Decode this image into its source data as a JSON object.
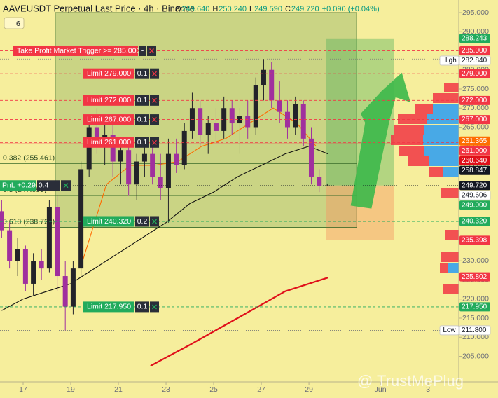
{
  "header": {
    "title": "AAVEUSDT Perpetual Last Price · 4h · Binance",
    "ohlc": [
      {
        "key": "O",
        "value": 249.64,
        "label": "249.640"
      },
      {
        "key": "H",
        "value": 250.24,
        "label": "250.240"
      },
      {
        "key": "L",
        "value": 249.59,
        "label": "249.590"
      },
      {
        "key": "C",
        "value": 249.72,
        "label": "249.720"
      }
    ],
    "change": "+0.090 (+0.04%)",
    "indicator_count": 6
  },
  "watermark": "@ TrustMePlug",
  "chart_data": {
    "type": "candlestick",
    "x": [
      16.1,
      16.43,
      16.77,
      17.1,
      17.43,
      17.77,
      18.1,
      18.43,
      18.77,
      19.1,
      19.43,
      19.77,
      20.1,
      20.43,
      20.77,
      21.1,
      21.43,
      21.77,
      22.1,
      22.43,
      22.77,
      23.1,
      23.43,
      23.77,
      24.1,
      24.43,
      24.77,
      25.1,
      25.43,
      25.77,
      26.1,
      26.43,
      26.77,
      27.1,
      27.43,
      27.77,
      28.1,
      28.43,
      28.77,
      29.1,
      29.43,
      29.77
    ],
    "open": [
      243,
      238,
      230,
      233,
      224,
      230,
      228,
      244,
      226,
      218,
      228,
      254,
      265,
      261,
      263,
      256,
      259,
      250,
      256,
      258,
      252,
      249,
      258,
      255,
      264,
      270,
      263,
      266,
      264,
      270,
      266,
      268,
      265,
      276,
      280,
      272,
      269,
      265,
      271,
      262,
      252,
      249.64
    ],
    "high": [
      246,
      240,
      236,
      234,
      232,
      233,
      246,
      247,
      230,
      230,
      256,
      268,
      270,
      266,
      266,
      262,
      262,
      258,
      262,
      261,
      258,
      262,
      262,
      266,
      274,
      272,
      268,
      270,
      273,
      272,
      270,
      272,
      278,
      282.84,
      282,
      277,
      272,
      273,
      272,
      265,
      254,
      250.24
    ],
    "low": [
      236,
      228,
      226,
      222,
      221,
      225,
      227,
      222,
      211.8,
      216,
      226,
      252,
      258,
      255,
      252,
      250,
      247,
      246,
      252,
      250,
      246,
      240,
      253,
      254,
      262,
      260,
      258,
      261,
      262,
      263,
      258,
      262,
      263,
      272,
      270,
      266,
      262,
      263,
      260,
      250,
      248,
      249.59
    ],
    "close": [
      238,
      230,
      233,
      224,
      230,
      228,
      244,
      226,
      218,
      228,
      254,
      265,
      261,
      263,
      256,
      259,
      250,
      256,
      258,
      252,
      249,
      258,
      255,
      264,
      270,
      263,
      266,
      264,
      270,
      266,
      268,
      265,
      276,
      280,
      272,
      269,
      265,
      271,
      262,
      252,
      249.64,
      249.72
    ],
    "up_color": "#23232a",
    "down_color": "#a0309e",
    "xlim": [
      16.03,
      35.29
    ],
    "ylim": [
      198.3,
      298.3
    ],
    "xticks": [
      17,
      19,
      21,
      23,
      25,
      27,
      29,
      {
        "value": 32,
        "label": "Jun"
      },
      {
        "value": 34,
        "label": "3"
      }
    ],
    "yticks": [
      {
        "value": 295,
        "label": "295.000"
      },
      {
        "value": 290,
        "label": "290.000"
      },
      {
        "value": 285,
        "label": "285.000"
      },
      {
        "value": 280,
        "label": "280.000"
      },
      {
        "value": 275,
        "label": "275.000"
      },
      {
        "value": 270,
        "label": "270.000"
      },
      {
        "value": 265,
        "label": "265.000"
      },
      {
        "value": 260,
        "label": "260.000"
      },
      {
        "value": 255,
        "label": "255.000"
      },
      {
        "value": 250,
        "label": "250.000"
      },
      {
        "value": 245,
        "label": "245.000"
      },
      {
        "value": 240,
        "label": "240.000"
      },
      {
        "value": 235,
        "label": "235.000"
      },
      {
        "value": 230,
        "label": "230.000"
      },
      {
        "value": 225,
        "label": "225.000"
      },
      {
        "value": 220,
        "label": "220.000"
      },
      {
        "value": 215,
        "label": "215.000"
      },
      {
        "value": 210,
        "label": "210.000"
      },
      {
        "value": 205,
        "label": "205.000"
      }
    ],
    "moving_averages": [
      {
        "color": "#ff6a00",
        "x": [
          19.5,
          20.5,
          21.5,
          22.5,
          23.5,
          24.5,
          25.5,
          26.5,
          27.5,
          28.5,
          29.3
        ],
        "values": [
          230,
          250,
          255,
          255,
          256,
          260,
          262,
          266,
          270,
          266,
          260
        ]
      },
      {
        "color": "#111111",
        "x": [
          16.1,
          17,
          18,
          19,
          20,
          21,
          22,
          23,
          24,
          25,
          26,
          27,
          28,
          29,
          29.8
        ],
        "values": [
          217,
          220,
          222,
          224,
          228,
          232,
          236,
          240,
          245,
          248,
          252,
          255,
          258,
          260,
          258
        ]
      },
      {
        "color": "#e0101a",
        "x": [
          22.35,
          24,
          26,
          28,
          29.8
        ],
        "values": [
          202.5,
          208,
          215,
          222,
          225.6
        ]
      }
    ],
    "range_box": {
      "x": [
        18.35,
        31.0
      ],
      "price": [
        238.728,
        295
      ]
    },
    "position_box": {
      "x": [
        29.72,
        32.56
      ],
      "entry": 249.72,
      "target": 288.243,
      "stop": 235.398
    },
    "orders": [
      {
        "text": "Take Profit Market Trigger >= 285.000",
        "price": 285,
        "qty": "-",
        "color": "#f23645"
      },
      {
        "text": "Limit 279.000",
        "price": 279,
        "qty": 0.1,
        "color": "#f23645"
      },
      {
        "text": "Limit 272.000",
        "price": 272,
        "qty": 0.1,
        "color": "#f23645"
      },
      {
        "text": "Limit 267.000",
        "price": 267,
        "qty": 0.1,
        "color": "#f23645"
      },
      {
        "text": "Limit 261.000",
        "price": 261,
        "qty": 0.1,
        "color": "#f23645"
      },
      {
        "text": "Limit 240.320",
        "price": 240.32,
        "qty": 0.2,
        "color": "#22ab5c"
      },
      {
        "text": "Limit 217.950",
        "price": 217.95,
        "qty": 0.1,
        "color": "#22ab5c"
      }
    ],
    "pnl": {
      "text": "PnL +0.29",
      "qty": 0.4,
      "price": 249.72,
      "color": "#22ab5c"
    },
    "fib_levels": [
      {
        "text": "0.382 (255.461)",
        "price": 255.461
      },
      {
        "text": "0.5 (247.095)",
        "price": 247.095
      },
      {
        "text": "0.618 (238.728)",
        "price": 238.728
      }
    ],
    "level_lines": [
      {
        "price": 260.64,
        "color": "#f23645"
      },
      {
        "price": 282.84,
        "color": "#777777"
      },
      {
        "price": 211.8,
        "color": "#777777"
      }
    ],
    "price_badges": [
      {
        "price": 288.243,
        "label": "288.243",
        "bg": "#22ab5c",
        "fg": "#ffffff"
      },
      {
        "price": 285,
        "label": "285.000",
        "bg": "#f23645",
        "fg": "#ffffff"
      },
      {
        "price": 282.84,
        "label": "282.840",
        "tag": "High",
        "bg": "#ffffff",
        "fg": "#131722"
      },
      {
        "price": 279,
        "label": "279.000",
        "bg": "#f23645",
        "fg": "#ffffff"
      },
      {
        "price": 272,
        "label": "272.000",
        "bg": "#f23645",
        "fg": "#ffffff"
      },
      {
        "price": 267,
        "label": "267.000",
        "bg": "#f23645",
        "fg": "#ffffff"
      },
      {
        "price": 261.365,
        "label": "261.365",
        "bg": "#ff6d00",
        "fg": "#ffffff"
      },
      {
        "price": 261,
        "label": "261.000",
        "bg": "#f23645",
        "fg": "#ffffff"
      },
      {
        "price": 260.64,
        "label": "260.640",
        "bg": "#e0101a",
        "fg": "#ffffff"
      },
      {
        "price": 258.847,
        "label": "258.847",
        "bg": "#131722",
        "fg": "#ffffff"
      },
      {
        "price": 249.72,
        "label": "249.720",
        "bg": "#131722",
        "fg": "#ffffff"
      },
      {
        "price": 249.606,
        "label": "249.606",
        "bg": "#ffffff",
        "fg": "#131722"
      },
      {
        "price": 249,
        "label": "249.000",
        "bg": "#22ab5c",
        "fg": "#ffffff"
      },
      {
        "price": 240.32,
        "label": "240.320",
        "bg": "#22ab5c",
        "fg": "#ffffff"
      },
      {
        "price": 235.398,
        "label": "235.398",
        "bg": "#f23645",
        "fg": "#ffffff"
      },
      {
        "price": 225.802,
        "label": "225.802",
        "bg": "#f23645",
        "fg": "#ffffff"
      },
      {
        "price": 217.95,
        "label": "217.950",
        "bg": "#22ab5c",
        "fg": "#ffffff"
      },
      {
        "price": 211.8,
        "label": "211.800",
        "tag": "Low",
        "bg": "#ffffff",
        "fg": "#131722"
      }
    ]
  }
}
